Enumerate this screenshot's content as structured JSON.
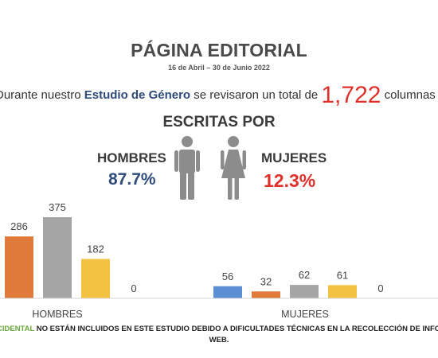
{
  "header": {
    "title": "PÁGINA EDITORIAL",
    "date_range": "16 de Abril – 30 de Junio 2022"
  },
  "summary": {
    "prefix": "Durante nuestro ",
    "study_name": "Estudio de Género",
    "middle": " se revisaron un total de ",
    "total": "1,722",
    "suffix": " columnas"
  },
  "subtitle": "ESCRITAS POR",
  "genders": {
    "men": {
      "label": "HOMBRES",
      "percent": "87.7%",
      "icon": "man-icon"
    },
    "women": {
      "label": "MUJERES",
      "percent": "12.3%",
      "icon": "woman-icon"
    }
  },
  "colors": {
    "navy": "#2e4a7a",
    "red": "#e0302a",
    "blue": "#5b8fd4",
    "orange": "#e07a3a",
    "gray": "#a5a5a5",
    "yellow": "#f4c242",
    "icon_gray": "#8c8c8c"
  },
  "chart_data": {
    "type": "bar",
    "categories": [
      "HOMBRES",
      "MUJERES"
    ],
    "series": [
      {
        "values": [
          null,
          56
        ],
        "color": "#5b8fd4"
      },
      {
        "values": [
          286,
          32
        ],
        "color": "#e07a3a"
      },
      {
        "values": [
          375,
          62
        ],
        "color": "#a5a5a5"
      },
      {
        "values": [
          182,
          61
        ],
        "color": "#f4c242"
      },
      {
        "values": [
          0,
          0
        ],
        "color": "#5b8fd4"
      }
    ],
    "ylim": [
      0,
      375
    ],
    "grid": false,
    "data_labels": true
  },
  "footnote": {
    "source_fragment": "CIDENTAL",
    "text": " NO ESTÁN INCLUIDOS EN ESTE ESTUDIO DEBIDO A DIFICULTADES TÉCNICAS EN LA RECOLECCIÓN DE INFO",
    "line2": "WEB."
  }
}
